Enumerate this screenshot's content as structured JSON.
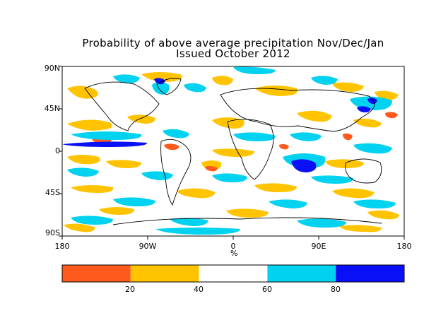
{
  "title": {
    "line1": "Probability of above average precipitation Nov/Dec/Jan",
    "line2": "Issued October 2012"
  },
  "map": {
    "lat_labels": [
      "90N",
      "45N",
      "0",
      "45S",
      "90S"
    ],
    "lon_labels": [
      "180",
      "90W",
      "0",
      "90E",
      "180"
    ],
    "unit": "%"
  },
  "colorbar": {
    "tick_labels": [
      "20",
      "40",
      "60",
      "80"
    ],
    "bins": [
      {
        "range": [
          0,
          20
        ],
        "color": "#ff5a1e"
      },
      {
        "range": [
          20,
          40
        ],
        "color": "#ffc300"
      },
      {
        "range": [
          40,
          60
        ],
        "color": "#ffffff"
      },
      {
        "range": [
          60,
          80
        ],
        "color": "#00d2f0"
      },
      {
        "range": [
          80,
          100
        ],
        "color": "#0a10f5"
      }
    ]
  },
  "colors": {
    "below_strong": "#ff5a1e",
    "below": "#ffc300",
    "above": "#00d2f0",
    "above_strong": "#0a10f5",
    "frame": "#000000"
  }
}
